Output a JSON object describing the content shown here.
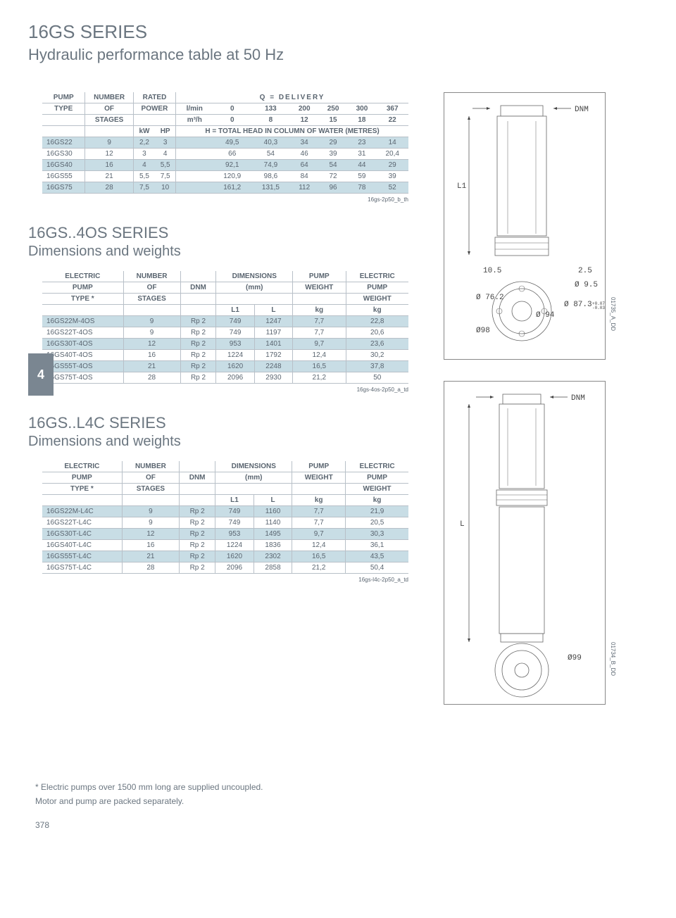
{
  "page_title": "16GS SERIES",
  "page_subtitle": "Hydraulic performance table at 50 Hz",
  "hydraulic_table": {
    "headers": {
      "c1": "PUMP",
      "c1b": "TYPE",
      "c2": "NUMBER",
      "c2b": "OF",
      "c2c": "STAGES",
      "c3": "RATED",
      "c3b": "POWER",
      "q_label": "Q = DELIVERY",
      "lmin_label": "l/min",
      "lmin_vals": [
        "0",
        "133",
        "200",
        "250",
        "300",
        "367"
      ],
      "m3h_label": "m³/h",
      "m3h_vals": [
        "0",
        "8",
        "12",
        "15",
        "18",
        "22"
      ],
      "kw": "kW",
      "hp": "HP",
      "h_label": "H = TOTAL HEAD IN COLUMN OF WATER (METRES)"
    },
    "rows": [
      {
        "band": true,
        "type": "16GS22",
        "stages": "9",
        "kw": "2,2",
        "hp": "3",
        "v": [
          "49,5",
          "40,3",
          "34",
          "29",
          "23",
          "14"
        ]
      },
      {
        "band": false,
        "type": "16GS30",
        "stages": "12",
        "kw": "3",
        "hp": "4",
        "v": [
          "66",
          "54",
          "46",
          "39",
          "31",
          "20,4"
        ]
      },
      {
        "band": true,
        "type": "16GS40",
        "stages": "16",
        "kw": "4",
        "hp": "5,5",
        "v": [
          "92,1",
          "74,9",
          "64",
          "54",
          "44",
          "29"
        ]
      },
      {
        "band": false,
        "type": "16GS55",
        "stages": "21",
        "kw": "5,5",
        "hp": "7,5",
        "v": [
          "120,9",
          "98,6",
          "84",
          "72",
          "59",
          "39"
        ]
      },
      {
        "band": true,
        "type": "16GS75",
        "stages": "28",
        "kw": "7,5",
        "hp": "10",
        "v": [
          "161,2",
          "131,5",
          "112",
          "96",
          "78",
          "52"
        ]
      }
    ],
    "ref": "16gs-2p50_b_th"
  },
  "section_4os": {
    "title": "16GS..4OS SERIES",
    "subtitle": "Dimensions and weights",
    "headers": {
      "c1": "ELECTRIC",
      "c1b": "PUMP",
      "c1c": "TYPE *",
      "c2": "NUMBER",
      "c2b": "OF",
      "c2c": "STAGES",
      "c3": "DNM",
      "c4": "DIMENSIONS",
      "c4b": "(mm)",
      "c4l": "L1",
      "c4r": "L",
      "c5": "PUMP",
      "c5b": "WEIGHT",
      "c5c": "kg",
      "c6": "ELECTRIC",
      "c6b": "PUMP",
      "c6c": "WEIGHT",
      "c6d": "kg"
    },
    "rows": [
      {
        "band": true,
        "type": "16GS22M-4OS",
        "stages": "9",
        "dnm": "Rp 2",
        "l1": "749",
        "l": "1247",
        "pw": "7,7",
        "ew": "22,8"
      },
      {
        "band": false,
        "type": "16GS22T-4OS",
        "stages": "9",
        "dnm": "Rp 2",
        "l1": "749",
        "l": "1197",
        "pw": "7,7",
        "ew": "20,6"
      },
      {
        "band": true,
        "type": "16GS30T-4OS",
        "stages": "12",
        "dnm": "Rp 2",
        "l1": "953",
        "l": "1401",
        "pw": "9,7",
        "ew": "23,6"
      },
      {
        "band": false,
        "type": "16GS40T-4OS",
        "stages": "16",
        "dnm": "Rp 2",
        "l1": "1224",
        "l": "1792",
        "pw": "12,4",
        "ew": "30,2"
      },
      {
        "band": true,
        "type": "16GS55T-4OS",
        "stages": "21",
        "dnm": "Rp 2",
        "l1": "1620",
        "l": "2248",
        "pw": "16,5",
        "ew": "37,8"
      },
      {
        "band": false,
        "type": "16GS75T-4OS",
        "stages": "28",
        "dnm": "Rp 2",
        "l1": "2096",
        "l": "2930",
        "pw": "21,2",
        "ew": "50"
      }
    ],
    "ref": "16gs-4os-2p50_a_td"
  },
  "section_l4c": {
    "title": "16GS..L4C SERIES",
    "subtitle": "Dimensions and weights",
    "rows": [
      {
        "band": true,
        "type": "16GS22M-L4C",
        "stages": "9",
        "dnm": "Rp 2",
        "l1": "749",
        "l": "1160",
        "pw": "7,7",
        "ew": "21,9"
      },
      {
        "band": false,
        "type": "16GS22T-L4C",
        "stages": "9",
        "dnm": "Rp 2",
        "l1": "749",
        "l": "1140",
        "pw": "7,7",
        "ew": "20,5"
      },
      {
        "band": true,
        "type": "16GS30T-L4C",
        "stages": "12",
        "dnm": "Rp 2",
        "l1": "953",
        "l": "1495",
        "pw": "9,7",
        "ew": "30,3"
      },
      {
        "band": false,
        "type": "16GS40T-L4C",
        "stages": "16",
        "dnm": "Rp 2",
        "l1": "1224",
        "l": "1836",
        "pw": "12,4",
        "ew": "36,1"
      },
      {
        "band": true,
        "type": "16GS55T-L4C",
        "stages": "21",
        "dnm": "Rp 2",
        "l1": "1620",
        "l": "2302",
        "pw": "16,5",
        "ew": "43,5"
      },
      {
        "band": false,
        "type": "16GS75T-L4C",
        "stages": "28",
        "dnm": "Rp 2",
        "l1": "2096",
        "l": "2858",
        "pw": "21,2",
        "ew": "50,4"
      }
    ],
    "ref": "16gs-l4c-2p50_a_td"
  },
  "diagram_a": {
    "dnm": "DNM",
    "l1": "L1",
    "a105": "10.5",
    "a25": "2.5",
    "d95": "Ø 9.5",
    "d762": "Ø 76.2",
    "d873": "Ø 87.3",
    "tol": "+0.07\n-0.03",
    "d94": "Ø 94",
    "d98": "Ø98",
    "ref": "01735_A_DD"
  },
  "diagram_b": {
    "dnm": "DNM",
    "l": "L",
    "d99": "Ø99",
    "ref": "01734_B_DD"
  },
  "side_tab": "4",
  "footnote1": "* Electric pumps over 1500 mm long are supplied uncoupled.",
  "footnote2": "Motor and pump are packed separately.",
  "page_number": "378",
  "colors": {
    "band": "#c8dde5",
    "text": "#5a6570",
    "title": "#6b7680",
    "tab": "#7a8691"
  }
}
